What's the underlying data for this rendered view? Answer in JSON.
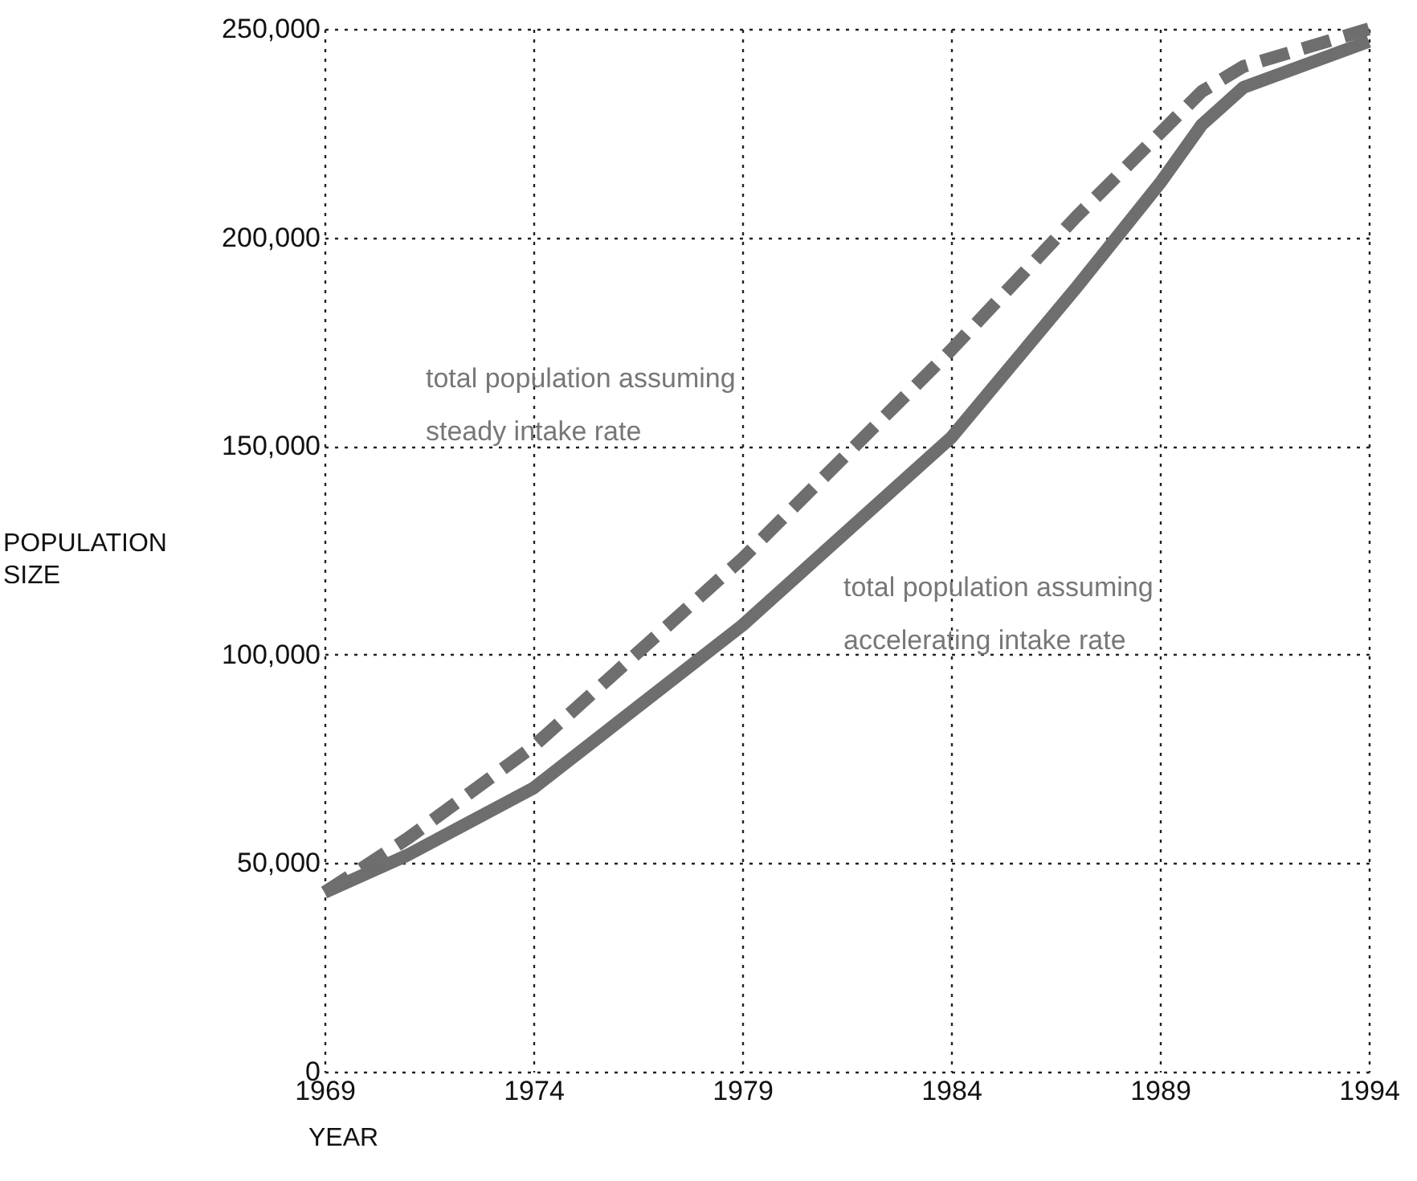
{
  "chart_data": {
    "type": "line",
    "xlabel": "YEAR",
    "ylabel": "POPULATION SIZE",
    "x": [
      1969,
      1971,
      1974,
      1979,
      1984,
      1987,
      1989,
      1990,
      1991,
      1994
    ],
    "series": [
      {
        "color": "#6e6e6e",
        "line_style": "solid",
        "values": [
          43000,
          52000,
          68000,
          107000,
          152000,
          188000,
          213000,
          227000,
          236000,
          247000
        ]
      },
      {
        "color": "#6e6e6e",
        "line_style": "dashed",
        "values": [
          43000,
          56000,
          78000,
          123000,
          173000,
          205000,
          225000,
          235000,
          241000,
          250000
        ]
      }
    ],
    "annotations": [
      "total population assuming\nsteady intake rate",
      "total population assuming\naccelerating intake rate"
    ],
    "xlim": [
      1969,
      1994
    ],
    "xticks": [
      1969,
      1974,
      1979,
      1984,
      1989,
      1994
    ],
    "ylim": [
      0,
      250000
    ],
    "yticks": [
      0,
      {
        "value": 50000,
        "label": "50,000"
      },
      {
        "value": 100000,
        "label": "100,000"
      },
      {
        "value": 150000,
        "label": "150,000"
      },
      {
        "value": 200000,
        "label": "200,000"
      },
      {
        "value": 250000,
        "label": "250,000"
      }
    ],
    "grid": true,
    "marker": "none"
  }
}
